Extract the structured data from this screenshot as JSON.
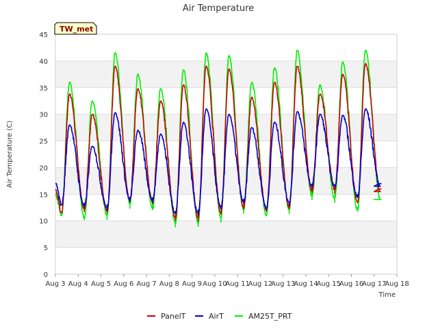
{
  "chart_data": {
    "type": "line",
    "title": "Air Temperature",
    "xlabel": "Time",
    "ylabel": "Air Temperature (C)",
    "tag": "TW_met",
    "ylim": [
      0,
      45
    ],
    "yticks": [
      0,
      5,
      10,
      15,
      20,
      25,
      30,
      35,
      40,
      45
    ],
    "xlim": [
      3,
      18
    ],
    "xticks": [
      3,
      4,
      5,
      6,
      7,
      8,
      9,
      10,
      11,
      12,
      13,
      14,
      15,
      16,
      17,
      18
    ],
    "xtick_labels": [
      "Aug 3",
      "Aug 4",
      "Aug 5",
      "Aug 6",
      "Aug 7",
      "Aug 8",
      "Aug 9",
      "Aug 10",
      "Aug 11",
      "Aug 12",
      "Aug 13",
      "Aug 14",
      "Aug 15",
      "Aug 16",
      "Aug 17",
      "Aug 18"
    ],
    "x_unit": "day of August",
    "grid": "horizontal bands",
    "legend_position": "bottom",
    "daily_extremes": {
      "days": [
        3,
        4,
        5,
        6,
        7,
        8,
        9,
        10,
        11,
        12,
        13,
        14,
        15,
        16,
        17
      ],
      "series": [
        {
          "name": "PanelT",
          "color": "#cc0000",
          "start": 15.8,
          "mins": [
            11.5,
            12.2,
            11.8,
            13.8,
            13.5,
            10.5,
            10.5,
            11.5,
            12.5,
            12.0,
            12.5,
            15.5,
            15.8,
            13.5,
            15.5
          ],
          "maxs": [
            33.8,
            30.0,
            39.0,
            34.8,
            32.5,
            35.5,
            39.0,
            38.5,
            33.2,
            36.0,
            39.0,
            33.8,
            37.5,
            39.5,
            16.0
          ]
        },
        {
          "name": "AirT",
          "color": "#0000cc",
          "start": 17.0,
          "mins": [
            13.0,
            12.8,
            12.5,
            14.0,
            14.0,
            11.5,
            11.5,
            12.5,
            13.5,
            12.5,
            13.5,
            16.5,
            16.5,
            14.5,
            16.5
          ],
          "maxs": [
            28.0,
            24.0,
            30.3,
            27.0,
            26.3,
            28.5,
            31.0,
            30.0,
            27.5,
            28.5,
            30.5,
            30.0,
            29.8,
            31.0,
            17.0
          ]
        },
        {
          "name": "AM25T_PRT",
          "color": "#00ee00",
          "start": 15.0,
          "mins": [
            11.0,
            10.5,
            11.0,
            13.2,
            12.2,
            9.5,
            9.5,
            10.5,
            12.0,
            11.0,
            12.0,
            14.5,
            14.2,
            12.0,
            14.0
          ],
          "maxs": [
            36.0,
            32.5,
            41.5,
            37.5,
            34.8,
            38.3,
            41.5,
            41.0,
            36.0,
            38.7,
            42.0,
            35.5,
            39.8,
            42.0,
            14.0
          ]
        }
      ]
    }
  }
}
